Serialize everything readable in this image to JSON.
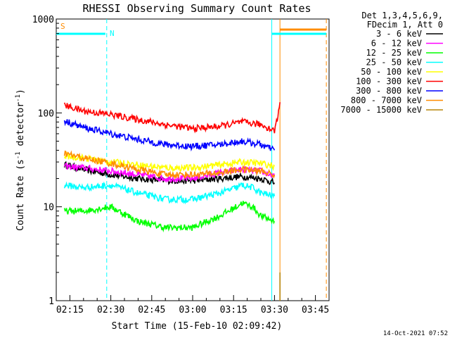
{
  "chart_data": {
    "type": "line",
    "title": "RHESSI Observing Summary Count Rates",
    "xlabel": "Start Time (15-Feb-10 02:09:42)",
    "ylabel_main": "Count Rate (s",
    "ylabel_sup1": "-1",
    "ylabel_mid": " detector",
    "ylabel_sup2": "-1",
    "ylabel_end": ")",
    "yscale": "log",
    "ylim": [
      1,
      1000
    ],
    "xlim_minutes": [
      130,
      230
    ],
    "x_ticks": [
      {
        "label": "02:15",
        "minutes": 135
      },
      {
        "label": "02:30",
        "minutes": 150
      },
      {
        "label": "02:45",
        "minutes": 165
      },
      {
        "label": "03:00",
        "minutes": 180
      },
      {
        "label": "03:15",
        "minutes": 195
      },
      {
        "label": "03:30",
        "minutes": 210
      },
      {
        "label": "03:45",
        "minutes": 225
      }
    ],
    "y_ticks": [
      {
        "label": "1",
        "value": 1
      },
      {
        "label": "10",
        "value": 10
      },
      {
        "label": "100",
        "value": 100
      },
      {
        "label": "1000",
        "value": 1000
      }
    ],
    "legend_header": [
      "Det 1,3,4,5,6,9,",
      "FDecim 1, Att 0"
    ],
    "timestamp": "14-Oct-2021 07:52",
    "series": [
      {
        "name": "3 - 6 keV",
        "color": "#000000",
        "x": [
          133,
          140,
          150,
          160,
          170,
          180,
          190,
          198,
          205,
          210
        ],
        "values": [
          28,
          25,
          22,
          20,
          19,
          19,
          20,
          21,
          20,
          18
        ]
      },
      {
        "name": "6 - 12 keV",
        "color": "#ff00ff",
        "x": [
          133,
          140,
          150,
          160,
          170,
          180,
          190,
          198,
          205,
          210
        ],
        "values": [
          27,
          26,
          24,
          22,
          20,
          20,
          23,
          25,
          24,
          21
        ]
      },
      {
        "name": "12 - 25 keV",
        "color": "#00ff00",
        "x": [
          133,
          140,
          150,
          160,
          170,
          180,
          190,
          196,
          198,
          202,
          205,
          210
        ],
        "values": [
          9,
          9,
          10,
          7,
          6,
          6,
          8,
          10,
          11,
          10,
          8,
          7
        ]
      },
      {
        "name": "25 - 50 keV",
        "color": "#00ffff",
        "x": [
          133,
          140,
          150,
          160,
          170,
          180,
          190,
          196,
          198,
          202,
          205,
          210
        ],
        "values": [
          17,
          16,
          17,
          14,
          12,
          12,
          14,
          16,
          17,
          16,
          14,
          13
        ]
      },
      {
        "name": "50 - 100 keV",
        "color": "#ffff00",
        "x": [
          133,
          140,
          150,
          160,
          170,
          180,
          190,
          198,
          205,
          210
        ],
        "values": [
          35,
          33,
          30,
          28,
          26,
          26,
          28,
          30,
          29,
          27
        ]
      },
      {
        "name": "100 - 300 keV",
        "color": "#ff0000",
        "x": [
          133,
          140,
          150,
          160,
          170,
          180,
          190,
          198,
          205,
          210,
          211,
          212
        ],
        "values": [
          120,
          105,
          96,
          85,
          75,
          68,
          72,
          80,
          75,
          65,
          85,
          130
        ]
      },
      {
        "name": "300 - 800 keV",
        "color": "#0000ff",
        "x": [
          133,
          140,
          150,
          160,
          170,
          180,
          190,
          198,
          205,
          210
        ],
        "values": [
          82,
          70,
          60,
          52,
          46,
          44,
          46,
          50,
          46,
          40
        ]
      },
      {
        "name": "800 - 7000 keV",
        "color": "#ff8c00",
        "x": [
          133,
          140,
          150,
          160,
          170,
          180,
          190,
          198,
          205,
          210
        ],
        "values": [
          37,
          33,
          29,
          25,
          22,
          22,
          23,
          25,
          24,
          22
        ]
      },
      {
        "name": "7000 - 15000 keV",
        "color": "#b8860b",
        "x": [
          212,
          212
        ],
        "values": [
          1,
          2
        ]
      }
    ],
    "state_bars": [
      {
        "label": "S",
        "color": "#ff8c00",
        "segments": [
          [
            212,
            229
          ]
        ]
      },
      {
        "label": "N",
        "color": "#00ffff",
        "segments": [
          [
            130,
            148
          ],
          [
            209,
            229
          ]
        ]
      }
    ],
    "vertical_markers": [
      {
        "minutes": 148.5,
        "color": "#00ffff",
        "style": "dashed"
      },
      {
        "minutes": 209,
        "color": "#00ffff",
        "style": "solid"
      },
      {
        "minutes": 212,
        "color": "#ff8c00",
        "style": "solid"
      },
      {
        "minutes": 229,
        "color": "#ff8c00",
        "style": "dashed"
      }
    ]
  }
}
